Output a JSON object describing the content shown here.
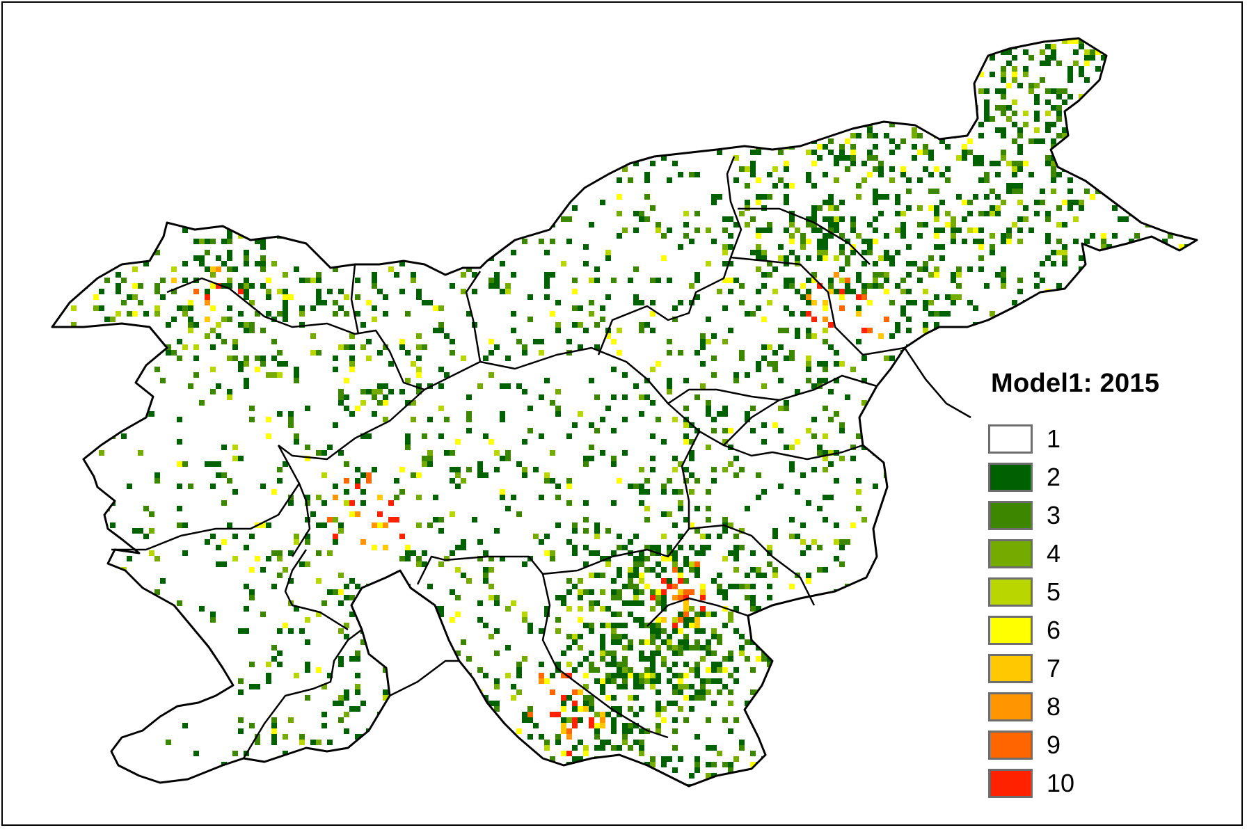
{
  "legend": {
    "title": "Model1: 2015",
    "classes": [
      {
        "label": "1",
        "color": "#ffffff"
      },
      {
        "label": "2",
        "color": "#006100"
      },
      {
        "label": "3",
        "color": "#3d8700"
      },
      {
        "label": "4",
        "color": "#73ab00"
      },
      {
        "label": "5",
        "color": "#bad600"
      },
      {
        "label": "6",
        "color": "#ffff00"
      },
      {
        "label": "7",
        "color": "#ffc800"
      },
      {
        "label": "8",
        "color": "#ff9500"
      },
      {
        "label": "9",
        "color": "#ff6600"
      },
      {
        "label": "10",
        "color": "#ff2200"
      }
    ]
  },
  "map": {
    "boundary_color": "#000000"
  }
}
